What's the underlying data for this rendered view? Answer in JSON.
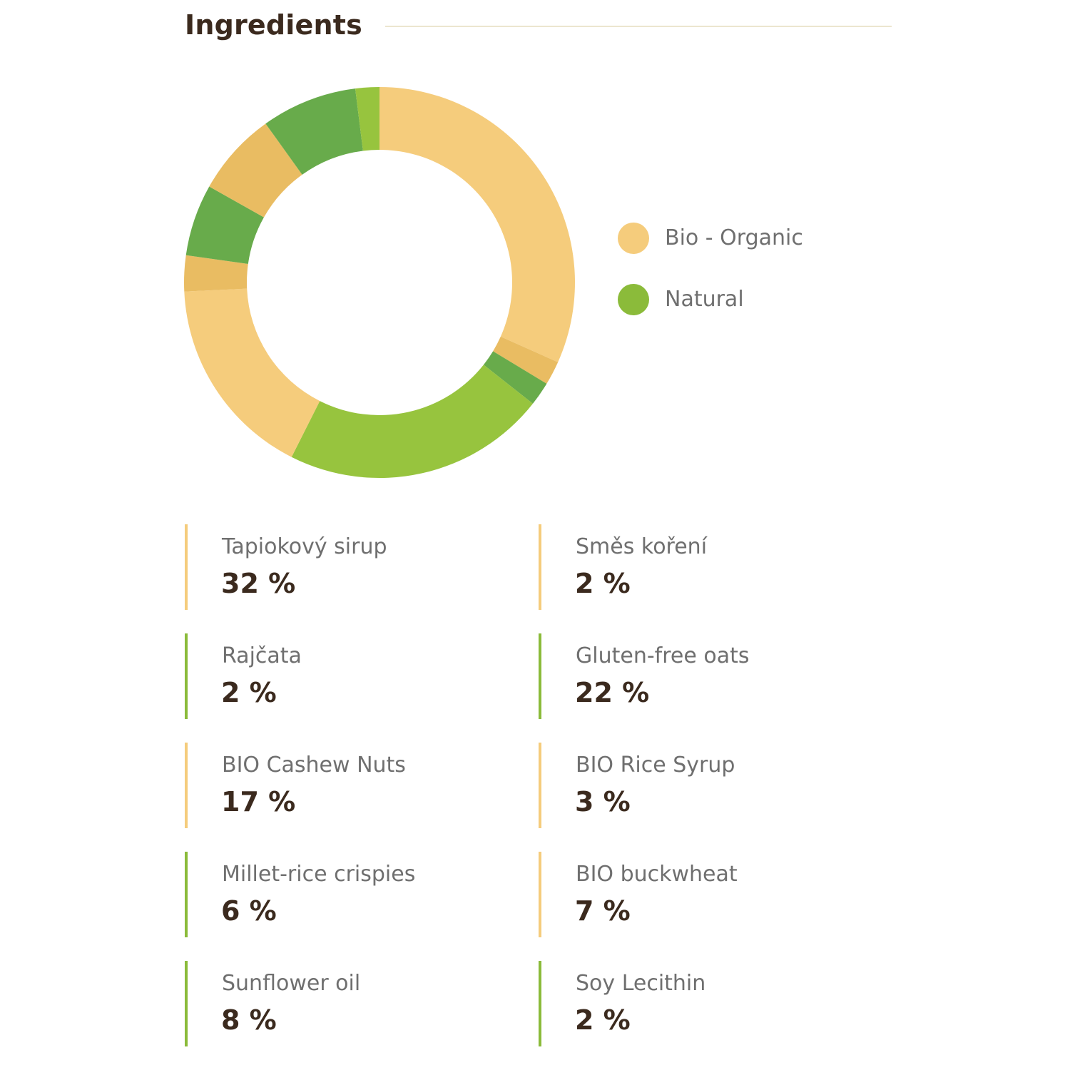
{
  "header": {
    "title": "Ingredients"
  },
  "legend": [
    {
      "label": "Bio - Organic",
      "color": "#f5cc7c"
    },
    {
      "label": "Natural",
      "color": "#8bbb3a"
    }
  ],
  "chart_data": {
    "type": "pie",
    "variant": "donut",
    "title": "",
    "start": "top",
    "direction": "clockwise",
    "slices": [
      {
        "name": "Tapiokový sirup",
        "value": 32,
        "category": "Bio - Organic",
        "color": "#f5cc7c"
      },
      {
        "name": "Směs koření",
        "value": 2,
        "category": "Bio - Organic",
        "color": "#e9bc62"
      },
      {
        "name": "Rajčata",
        "value": 2,
        "category": "Natural",
        "color": "#68ab4b"
      },
      {
        "name": "Gluten-free oats",
        "value": 22,
        "category": "Natural",
        "color": "#97c43e"
      },
      {
        "name": "BIO Cashew Nuts",
        "value": 17,
        "category": "Bio - Organic",
        "color": "#f5cc7c"
      },
      {
        "name": "BIO Rice Syrup",
        "value": 3,
        "category": "Bio - Organic",
        "color": "#e9bc62"
      },
      {
        "name": "Millet-rice crispies",
        "value": 6,
        "category": "Natural",
        "color": "#68ab4b"
      },
      {
        "name": "BIO buckwheat",
        "value": 7,
        "category": "Bio - Organic",
        "color": "#e9bc62"
      },
      {
        "name": "Sunflower oil",
        "value": 8,
        "category": "Natural",
        "color": "#68ab4b"
      },
      {
        "name": "Soy Lecithin",
        "value": 2,
        "category": "Natural",
        "color": "#97c43e"
      }
    ]
  },
  "ingredients": [
    {
      "name": "Tapiokový sirup",
      "value": "32 %",
      "color": "#f5cc7c"
    },
    {
      "name": "Směs koření",
      "value": "2 %",
      "color": "#f5cc7c"
    },
    {
      "name": "Rajčata",
      "value": "2 %",
      "color": "#8bbb3a"
    },
    {
      "name": "Gluten-free oats",
      "value": "22 %",
      "color": "#8bbb3a"
    },
    {
      "name": "BIO Cashew Nuts",
      "value": "17 %",
      "color": "#f5cc7c"
    },
    {
      "name": "BIO Rice Syrup",
      "value": "3 %",
      "color": "#f5cc7c"
    },
    {
      "name": "Millet-rice crispies",
      "value": "6 %",
      "color": "#8bbb3a"
    },
    {
      "name": "BIO buckwheat",
      "value": "7 %",
      "color": "#f5cc7c"
    },
    {
      "name": "Sunflower oil",
      "value": "8 %",
      "color": "#8bbb3a"
    },
    {
      "name": "Soy Lecithin",
      "value": "2 %",
      "color": "#8bbb3a"
    }
  ]
}
